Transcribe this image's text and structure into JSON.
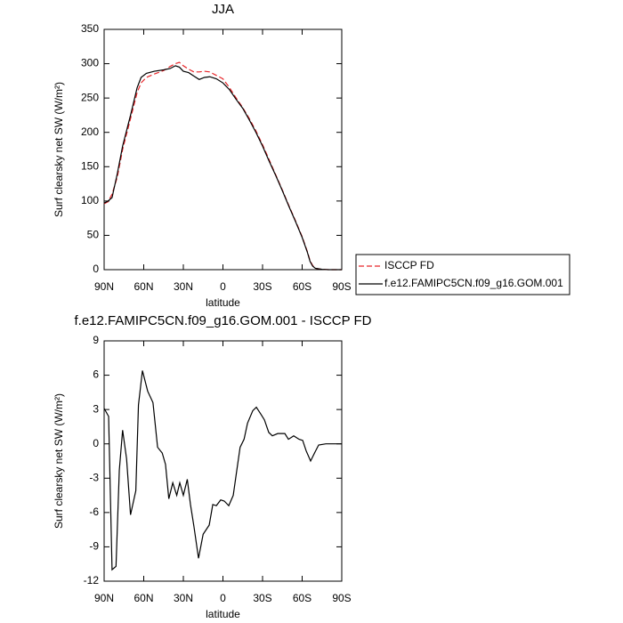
{
  "chart_data": [
    {
      "type": "line",
      "title": "JJA",
      "x_label": "latitude",
      "y_label": "Surf clearsky net SW (W/m²)",
      "x": [
        90,
        87,
        84,
        80,
        76,
        70,
        65,
        62,
        58,
        52,
        45,
        40,
        36,
        33,
        30,
        26,
        22,
        18,
        14,
        10,
        5,
        0,
        -5,
        -10,
        -15,
        -20,
        -25,
        -30,
        -35,
        -40,
        -45,
        -50,
        -55,
        -60,
        -64,
        -66,
        -68,
        -70,
        -75,
        -80,
        -85,
        -90
      ],
      "series": [
        {
          "name": "ISCCP FD",
          "color": "#e8262a",
          "line_style": "dashed",
          "values": [
            96,
            99,
            110,
            135,
            175,
            220,
            258,
            272,
            280,
            285,
            290,
            296,
            300,
            302,
            297,
            292,
            288,
            288,
            289,
            288,
            283,
            278,
            265,
            250,
            236,
            220,
            202,
            182,
            160,
            138,
            116,
            93,
            71,
            48,
            26,
            13,
            6,
            2,
            0.5,
            0,
            0,
            0
          ]
        },
        {
          "name": "f.e12.FAMIPC5CN.f09_g16.GOM.001",
          "color": "#000000",
          "line_style": "solid",
          "values": [
            97,
            100,
            105,
            140,
            180,
            225,
            265,
            280,
            286,
            289,
            291,
            293,
            297,
            295,
            289,
            287,
            282,
            277,
            280,
            281,
            278,
            272,
            262,
            248,
            235,
            218,
            200,
            180,
            158,
            137,
            115,
            92,
            70,
            47,
            25,
            12,
            5,
            2,
            0.5,
            0,
            0,
            0
          ]
        }
      ],
      "xlim": [
        90,
        -90
      ],
      "xticks": [
        {
          "value": 90,
          "label": "90N"
        },
        {
          "value": 60,
          "label": "60N"
        },
        {
          "value": 30,
          "label": "30N"
        },
        0,
        {
          "value": -30,
          "label": "30S"
        },
        {
          "value": -60,
          "label": "60S"
        },
        {
          "value": -90,
          "label": "90S"
        }
      ],
      "ylim": [
        0,
        350
      ],
      "yticks": [
        0,
        50,
        100,
        150,
        200,
        250,
        300,
        350
      ],
      "legend": "right"
    },
    {
      "type": "line",
      "title": "f.e12.FAMIPC5CN.f09_g16.GOM.001 - ISCCP FD",
      "x_label": "latitude",
      "y_label": "Surf clearsky net SW (W/m²)",
      "x": [
        90,
        86.6,
        84,
        81,
        78.5,
        76,
        73,
        70,
        66,
        64,
        61,
        57,
        53,
        49.5,
        46,
        43.5,
        41,
        38,
        35,
        32.7,
        30,
        27,
        24.6,
        22,
        18.5,
        15,
        10.4,
        7.7,
        5,
        1.7,
        -1,
        -4.4,
        -7.8,
        -10.5,
        -13,
        -16,
        -18.6,
        -22.6,
        -25.3,
        -28.7,
        -31.4,
        -34.7,
        -37.4,
        -41.5,
        -46.9,
        -49.6,
        -53.6,
        -57.7,
        -60.4,
        -63,
        -66.4,
        -69.8,
        -72.5,
        -78,
        -84,
        -90
      ],
      "series": [
        {
          "color": "#000000",
          "line_style": "solid",
          "values": [
            3.1,
            2.4,
            -11,
            -10.7,
            -2.3,
            1.2,
            -1.3,
            -6.2,
            -4.1,
            3.4,
            6.4,
            4.6,
            3.6,
            -0.3,
            -0.8,
            -1.8,
            -4.8,
            -3.4,
            -4.5,
            -3.4,
            -4.5,
            -3.1,
            -5.3,
            -7.2,
            -10,
            -7.9,
            -7.1,
            -5.3,
            -5.4,
            -4.9,
            -5,
            -5.4,
            -4.5,
            -2.3,
            -0.3,
            0.4,
            1.8,
            2.9,
            3.2,
            2.6,
            2.1,
            1,
            0.7,
            0.9,
            0.9,
            0.4,
            0.7,
            0.4,
            0.3,
            -0.6,
            -1.5,
            -0.7,
            -0.1,
            0,
            0,
            0
          ]
        }
      ],
      "xlim": [
        90,
        -90
      ],
      "xticks": [
        {
          "value": 90,
          "label": "90N"
        },
        {
          "value": 60,
          "label": "60N"
        },
        {
          "value": 30,
          "label": "30N"
        },
        0,
        {
          "value": -30,
          "label": "30S"
        },
        {
          "value": -60,
          "label": "60S"
        },
        {
          "value": -90,
          "label": "90S"
        }
      ],
      "ylim": [
        -12,
        9
      ],
      "yticks": [
        -12,
        -9,
        -6,
        -3,
        0,
        3,
        6,
        9
      ]
    }
  ]
}
